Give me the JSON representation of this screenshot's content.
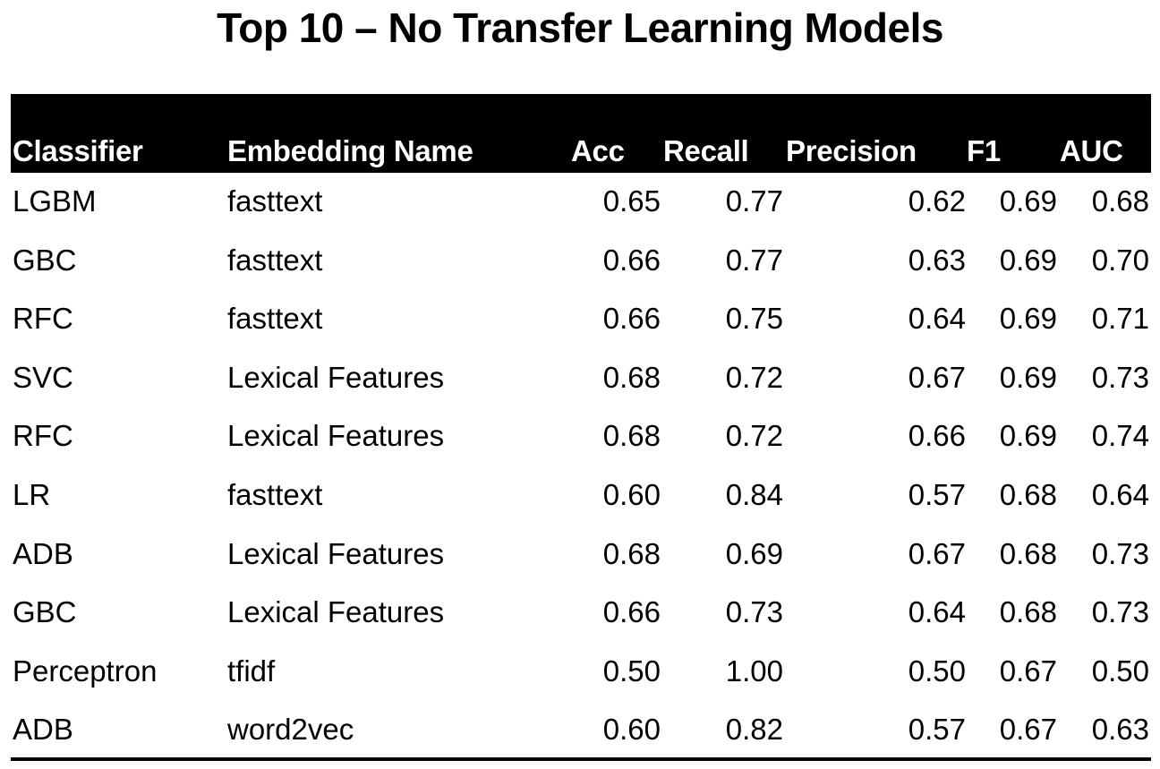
{
  "title": "Top 10 – No Transfer Learning Models",
  "columns": {
    "classifier": "Classifier",
    "embedding": "Embedding Name",
    "acc": "Acc",
    "recall": "Recall",
    "precision": "Precision",
    "f1": "F1",
    "auc": "AUC"
  },
  "rows": [
    {
      "classifier": "LGBM",
      "embedding": "fasttext",
      "acc": "0.65",
      "recall": "0.77",
      "precision": "0.62",
      "f1": "0.69",
      "auc": "0.68"
    },
    {
      "classifier": "GBC",
      "embedding": "fasttext",
      "acc": "0.66",
      "recall": "0.77",
      "precision": "0.63",
      "f1": "0.69",
      "auc": "0.70"
    },
    {
      "classifier": "RFC",
      "embedding": "fasttext",
      "acc": "0.66",
      "recall": "0.75",
      "precision": "0.64",
      "f1": "0.69",
      "auc": "0.71"
    },
    {
      "classifier": "SVC",
      "embedding": "Lexical Features",
      "acc": "0.68",
      "recall": "0.72",
      "precision": "0.67",
      "f1": "0.69",
      "auc": "0.73"
    },
    {
      "classifier": "RFC",
      "embedding": "Lexical Features",
      "acc": "0.68",
      "recall": "0.72",
      "precision": "0.66",
      "f1": "0.69",
      "auc": "0.74"
    },
    {
      "classifier": "LR",
      "embedding": "fasttext",
      "acc": "0.60",
      "recall": "0.84",
      "precision": "0.57",
      "f1": "0.68",
      "auc": "0.64"
    },
    {
      "classifier": "ADB",
      "embedding": "Lexical Features",
      "acc": "0.68",
      "recall": "0.69",
      "precision": "0.67",
      "f1": "0.68",
      "auc": "0.73"
    },
    {
      "classifier": "GBC",
      "embedding": "Lexical Features",
      "acc": "0.66",
      "recall": "0.73",
      "precision": "0.64",
      "f1": "0.68",
      "auc": "0.73"
    },
    {
      "classifier": "Perceptron",
      "embedding": "tfidf",
      "acc": "0.50",
      "recall": "1.00",
      "precision": "0.50",
      "f1": "0.67",
      "auc": "0.50"
    },
    {
      "classifier": "ADB",
      "embedding": "word2vec",
      "acc": "0.60",
      "recall": "0.82",
      "precision": "0.57",
      "f1": "0.67",
      "auc": "0.63"
    }
  ]
}
